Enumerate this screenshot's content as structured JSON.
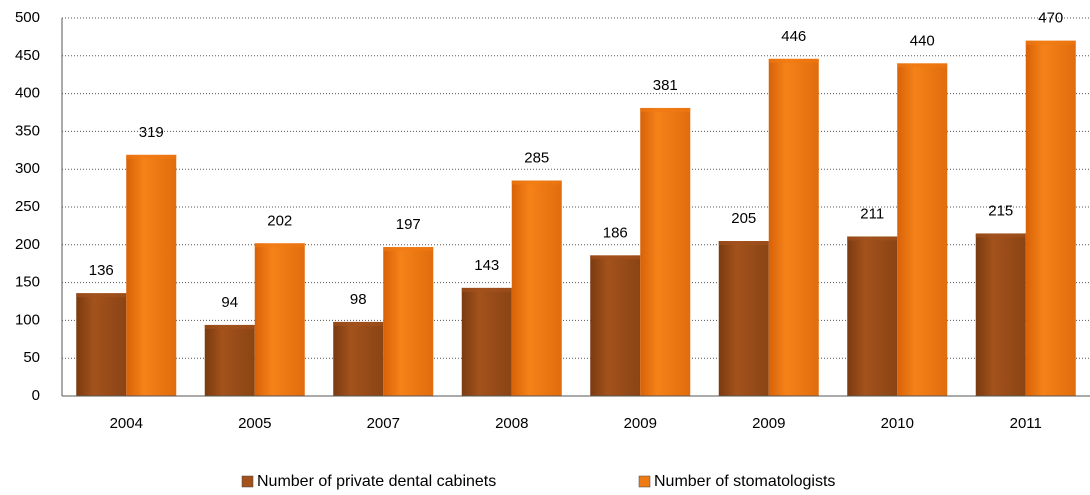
{
  "chart_data": {
    "type": "bar",
    "categories": [
      "2004",
      "2005",
      "2007",
      "2008",
      "2009",
      "2009",
      "2010",
      "2011"
    ],
    "series": [
      {
        "name": "Number of private dental cabinets",
        "color": "#a3521c",
        "values": [
          136,
          94,
          98,
          143,
          186,
          205,
          211,
          215
        ]
      },
      {
        "name": "Number of stomatologists",
        "color": "#f07a12",
        "values": [
          319,
          202,
          197,
          285,
          381,
          446,
          440,
          470
        ]
      }
    ],
    "ylim": [
      0,
      500
    ],
    "yticks": [
      0,
      50,
      100,
      150,
      200,
      250,
      300,
      350,
      400,
      450,
      500
    ],
    "grid": true
  }
}
